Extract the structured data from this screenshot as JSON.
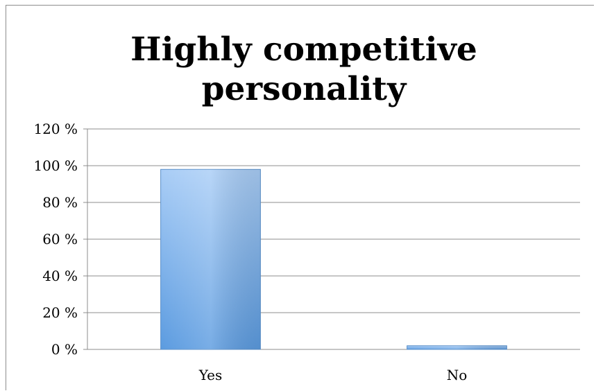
{
  "chart_data": {
    "type": "bar",
    "title": "Highly competitive personality",
    "title_lines": [
      "Highly competitive",
      "personality"
    ],
    "categories": [
      "Yes",
      "No"
    ],
    "values": [
      98,
      2
    ],
    "ylim": [
      0,
      120
    ],
    "yticks": [
      0,
      20,
      40,
      60,
      80,
      100,
      120
    ],
    "ytick_labels": [
      "0 %",
      "20 %",
      "40 %",
      "60 %",
      "80 %",
      "100 %",
      "120 %"
    ],
    "xlabel": "",
    "ylabel": "",
    "grid": true,
    "legend": "none",
    "bar_color": "#8db8ef"
  }
}
